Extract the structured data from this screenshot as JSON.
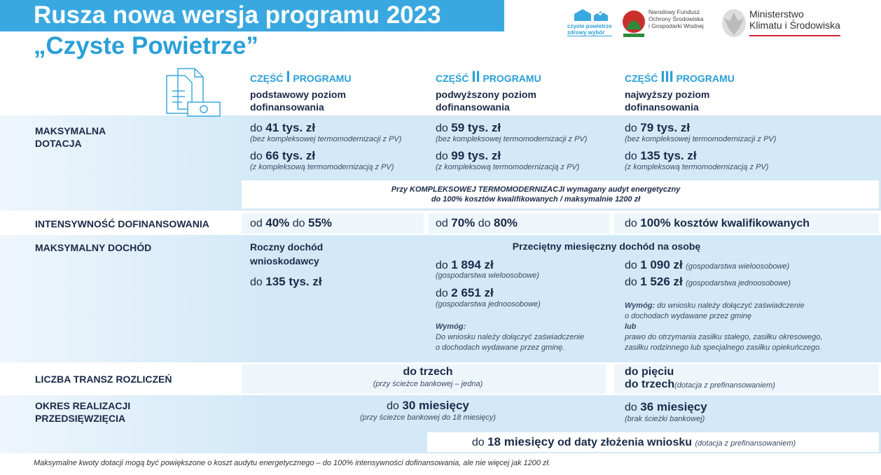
{
  "header": {
    "title": "Rusza nowa wersja programu 2023",
    "subtitle": "„Czyste Powietrze”",
    "logos": [
      [
        "czyste powietrze",
        "zdrowy wybór"
      ],
      [
        "Narodowy Fundusz",
        "Ochrony Środowiska",
        "i Gospodarki Wodnej"
      ],
      [
        "Ministerstwo",
        "Klimatu i Środowiska"
      ]
    ]
  },
  "columns": [
    {
      "part": "CZĘŚĆ",
      "numeral": "I",
      "program": "PROGRAMU",
      "description": [
        "podstawowy poziom",
        "dofinansowania"
      ]
    },
    {
      "part": "CZĘŚĆ",
      "numeral": "II",
      "program": "PROGRAMU",
      "description": [
        "podwyższony poziom",
        "dofinansowania"
      ]
    },
    {
      "part": "CZĘŚĆ",
      "numeral": "III",
      "program": "PROGRAMU",
      "description": [
        "najwyższy poziom",
        "dofinansowania"
      ]
    }
  ],
  "rows": {
    "max_grant": {
      "label": [
        "MAKSYMALNA",
        "DOTACJA"
      ],
      "cells": [
        [
          {
            "prefix": "do",
            "amount": "41 tys. zł",
            "note": "(bez kompleksowej termomodernizacji z PV)"
          },
          {
            "prefix": "do",
            "amount": "66 tys. zł",
            "note": "(z kompleksową termomodernizacją z PV)"
          }
        ],
        [
          {
            "prefix": "do",
            "amount": "59 tys. zł",
            "note": "(bez kompleksowej termomodernizacji z PV)"
          },
          {
            "prefix": "do",
            "amount": "99 tys. zł",
            "note": "(z kompleksową termomodernizacją z PV)"
          }
        ],
        [
          {
            "prefix": "do",
            "amount": "79 tys. zł",
            "note": "(bez kompleksowej termomodernizacji z PV)"
          },
          {
            "prefix": "do",
            "amount": "135 tys. zł",
            "note": "(z kompleksową termomodernizacją z PV)"
          }
        ]
      ],
      "note": [
        "Przy KOMPLEKSOWEJ TERMOMODERNIZACJI wymagany audyt energetyczny",
        "do 100% kosztów kwalifikowanych / maksymalnie 1200 zł"
      ]
    },
    "intensity": {
      "label": "INTENSYWNOŚĆ DOFINANSOWANIA",
      "cells": [
        [
          "od",
          "40%",
          "do",
          "55%"
        ],
        [
          "od",
          "70%",
          "do",
          "80%"
        ],
        [
          "do",
          "100%",
          "kosztów kwalifikowanych"
        ]
      ]
    },
    "income": {
      "label": "MAKSYMALNY DOCHÓD",
      "annual": {
        "title": [
          "Roczny dochód",
          "wnioskodawcy"
        ],
        "prefix": "do",
        "amount": "135 tys. zł"
      },
      "monthly_title": "Przeciętny miesięczny dochód na osobę",
      "cells": [
        {
          "amounts": [
            {
              "prefix": "do",
              "amount": "1 894 zł",
              "note": "(gospodarstwa wieloosobowe)"
            },
            {
              "prefix": "do",
              "amount": "2 651 zł",
              "note": "(gospodarstwa jednoosobowe)"
            }
          ],
          "requirement_label": "Wymóg:",
          "requirement": [
            "Do wniosku należy dołączyć zaświadczenie",
            "o dochodach wydawane przez gminę."
          ]
        },
        {
          "amounts": [
            {
              "prefix": "do",
              "amount": "1 090 zł",
              "note": "(gospodarstwa wieloosobowe)"
            },
            {
              "prefix": "do",
              "amount": "1 526 zł",
              "note": "(gospodarstwa jednoosobowe)"
            }
          ],
          "requirement_label": "Wymóg:",
          "requirement": [
            "do wniosku należy dołączyć zaświadczenie",
            "o dochodach wydawane przez gminę",
            "lub",
            "prawo do otrzymania zasiłku stałego, zasiłku okresowego,",
            "zasiłku rodzinnego lub specjalnego zasiłku opiekuńczego."
          ]
        }
      ]
    },
    "tranches": {
      "label": "LICZBA TRANSZ ROZLICZEŃ",
      "cells": [
        {
          "value": "do trzech",
          "note": "(przy ścieżce bankowej – jedna)"
        },
        {
          "value": "do pięciu",
          "prefinanced": "do trzech",
          "note": "(dotacja z prefinansowaniem)"
        }
      ]
    },
    "period": {
      "label": [
        "OKRES REALIZACJI",
        "PRZEDSIĘWZIĘCIA"
      ],
      "cells": [
        {
          "prefix": "do",
          "amount": "30 miesięcy",
          "note": "(przy ścieżce bankowej do 18 miesięcy)"
        },
        {
          "prefix": "do",
          "amount": "36 miesięcy",
          "note": "(brak ścieżki bankowej)"
        }
      ],
      "prefinanced": {
        "prefix": "do",
        "amount": "18 miesięcy",
        "text": "od daty złożenia wniosku",
        "note": "(dotacja z prefinansowaniem)"
      }
    }
  },
  "footer": "Maksymalne kwoty dotacji mogą być powiększone o koszt audytu energetycznego – do 100% intensywności dofinansowania, ale nie więcej jak 1200 zł."
}
